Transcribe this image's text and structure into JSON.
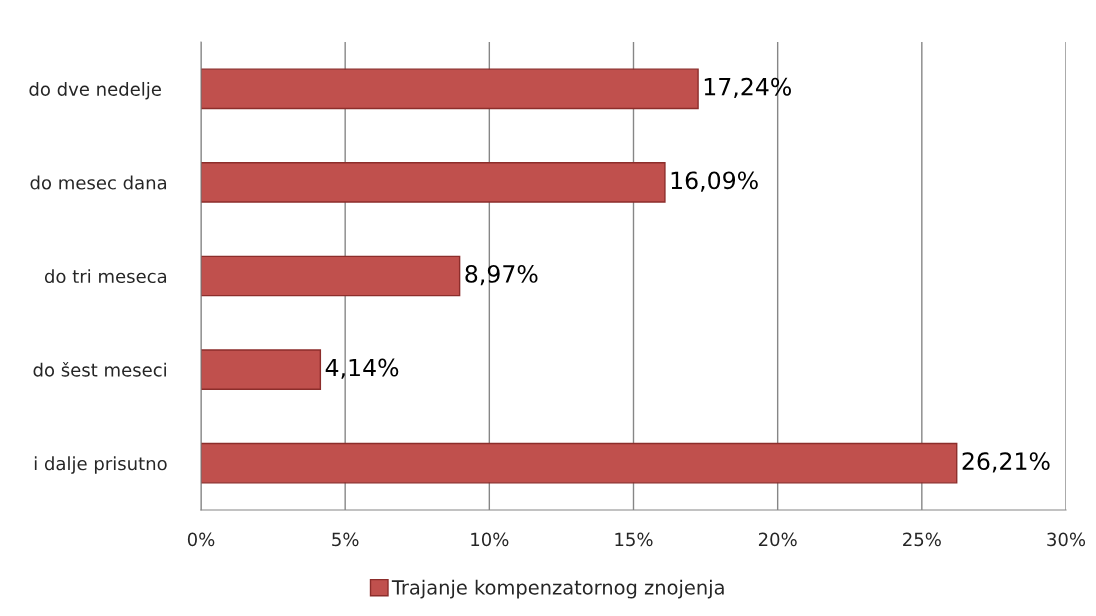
{
  "chart_data": {
    "type": "bar",
    "orientation": "horizontal",
    "categories": [
      "do dve nedelje ",
      "do mesec dana",
      "do tri meseca",
      "do šest meseci",
      "i dalje prisutno"
    ],
    "series": [
      {
        "name": "Trajanje kompenzatornog znojenja",
        "color": "#c0504d",
        "values": [
          17.24,
          16.09,
          8.97,
          4.14,
          26.21
        ],
        "value_labels": [
          "17,24%",
          "16,09%",
          "8,97%",
          "4,14%",
          "26,21%"
        ]
      }
    ],
    "xlim": [
      0,
      30
    ],
    "xticks": [
      {
        "value": 0,
        "label": "0%"
      },
      {
        "value": 5,
        "label": "5%"
      },
      {
        "value": 10,
        "label": "10%"
      },
      {
        "value": 15,
        "label": "15%"
      },
      {
        "value": 20,
        "label": "20%"
      },
      {
        "value": 25,
        "label": "25%"
      },
      {
        "value": 30,
        "label": "30%"
      }
    ],
    "grid": "x",
    "legend": "bottom"
  }
}
